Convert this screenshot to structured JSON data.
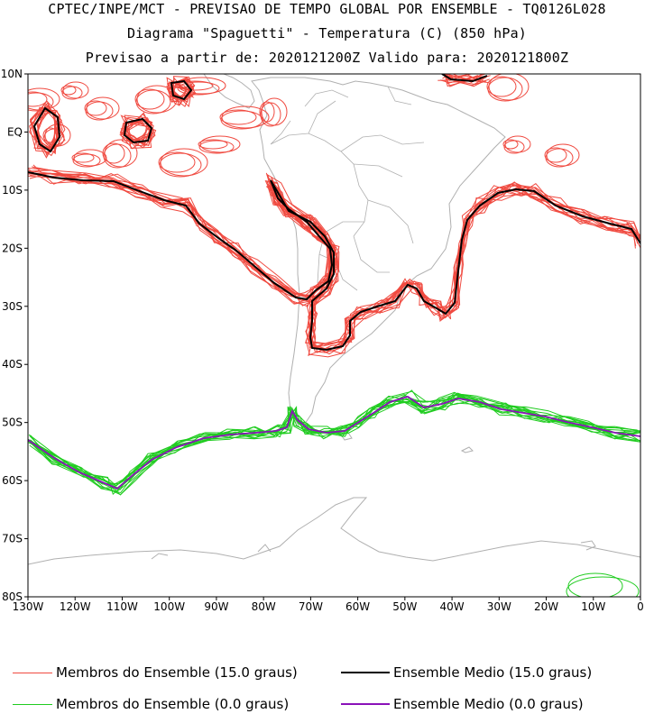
{
  "header": {
    "line1": "CPTEC/INPE/MCT - PREVISAO DE TEMPO GLOBAL POR ENSEMBLE - TQ0126L028",
    "line2": "Diagrama \"Spaguetti\" - Temperatura (C) (850 hPa)",
    "line3": "Previsao a partir de: 2020121200Z  Valido para: 2020121800Z"
  },
  "map": {
    "lat_ticks": [
      "10N",
      "EQ",
      "10S",
      "20S",
      "30S",
      "40S",
      "50S",
      "60S",
      "70S",
      "80S"
    ],
    "lon_ticks": [
      "130W",
      "120W",
      "110W",
      "100W",
      "90W",
      "80W",
      "70W",
      "60W",
      "50W",
      "40W",
      "30W",
      "20W",
      "10W",
      "0"
    ],
    "colors": {
      "coast": "#b0b0b0",
      "member_15": "#f04a40",
      "mean_15": "#000000",
      "member_0": "#20cc20",
      "mean_0": "#8a12b8"
    }
  },
  "legend": {
    "member_15": "Membros do Ensemble (15.0 graus)",
    "mean_15": "Ensemble Medio (15.0 graus)",
    "member_0": "Membros do Ensemble (0.0 graus)",
    "mean_0": "Ensemble Medio (0.0 graus)"
  }
}
